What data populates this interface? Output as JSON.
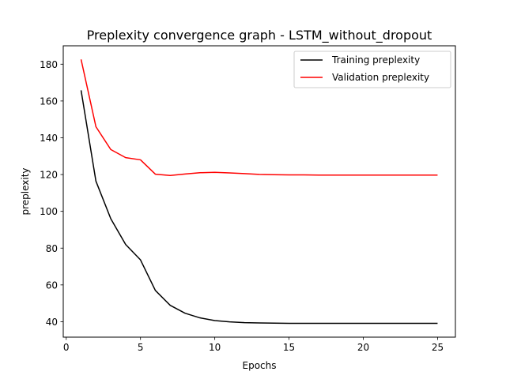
{
  "chart_data": {
    "type": "line",
    "title": "Preplexity convergence graph - LSTM_without_dropout",
    "xlabel": "Epochs",
    "ylabel": "preplexity",
    "xlim": [
      -0.2,
      26.2
    ],
    "ylim": [
      31.6,
      190.0
    ],
    "xticks": [
      0,
      5,
      10,
      15,
      20,
      25
    ],
    "yticks": [
      40,
      60,
      80,
      100,
      120,
      140,
      160,
      180
    ],
    "grid": false,
    "legend_position": "upper right",
    "x": [
      1,
      2,
      3,
      4,
      5,
      6,
      7,
      8,
      9,
      10,
      11,
      12,
      13,
      14,
      15,
      16,
      17,
      18,
      19,
      20,
      21,
      22,
      23,
      24,
      25
    ],
    "series": [
      {
        "name": "Training preplexity",
        "color": "#000000",
        "values": [
          165.8,
          116.4,
          96.0,
          82.0,
          73.6,
          57.0,
          48.9,
          44.6,
          42.1,
          40.6,
          39.9,
          39.5,
          39.3,
          39.2,
          39.1,
          39.1,
          39.1,
          39.1,
          39.1,
          39.1,
          39.1,
          39.1,
          39.1,
          39.1,
          39.1
        ]
      },
      {
        "name": "Validation preplexity",
        "color": "#ff0000",
        "values": [
          182.6,
          146.0,
          133.6,
          129.2,
          128.0,
          120.2,
          119.5,
          120.3,
          121.0,
          121.2,
          120.9,
          120.5,
          120.1,
          119.9,
          119.8,
          119.8,
          119.7,
          119.7,
          119.7,
          119.7,
          119.7,
          119.7,
          119.7,
          119.7,
          119.7
        ]
      }
    ]
  }
}
